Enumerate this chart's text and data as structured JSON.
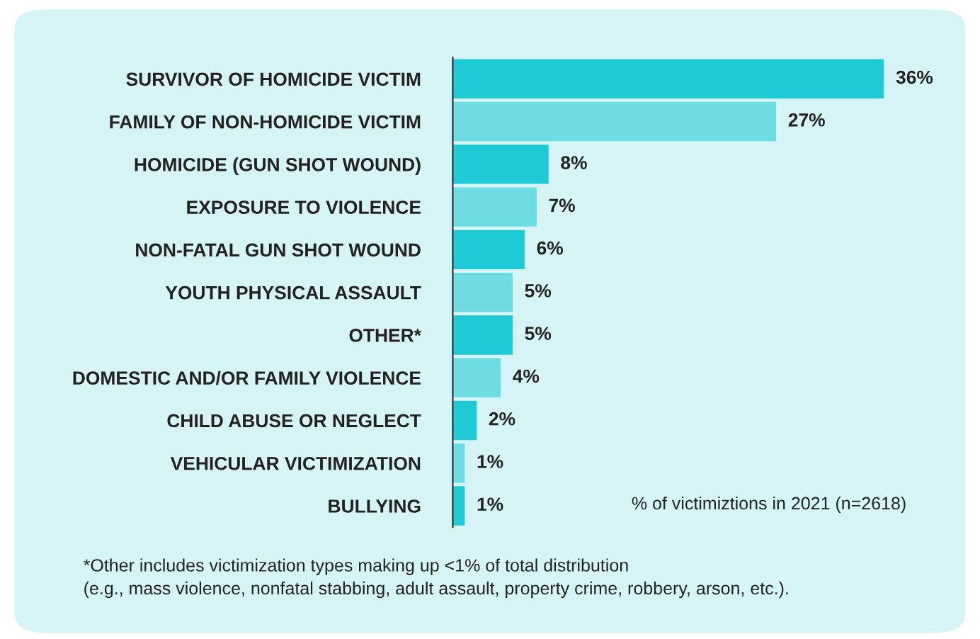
{
  "chart_data": {
    "type": "bar",
    "orientation": "horizontal",
    "categories": [
      "SURVIVOR OF HOMICIDE VICTIM",
      "FAMILY OF NON-HOMICIDE VICTIM",
      "HOMICIDE (GUN SHOT WOUND)",
      "EXPOSURE TO VIOLENCE",
      "NON-FATAL GUN SHOT WOUND",
      "YOUTH PHYSICAL ASSAULT",
      "OTHER*",
      "DOMESTIC AND/OR FAMILY VIOLENCE",
      "CHILD ABUSE OR NEGLECT",
      "VEHICULAR VICTIMIZATION",
      "BULLYING"
    ],
    "values": [
      36,
      27,
      8,
      7,
      6,
      5,
      5,
      4,
      2,
      1,
      1
    ],
    "value_labels": [
      "36%",
      "27%",
      "8%",
      "7%",
      "6%",
      "5%",
      "5%",
      "4%",
      "2%",
      "1%",
      "1%"
    ],
    "colors": [
      "#1ecad6",
      "#6ddce3",
      "#1ecad6",
      "#6ddce3",
      "#1ecad6",
      "#6ddce3",
      "#1ecad6",
      "#6ddce3",
      "#1ecad6",
      "#6ddce3",
      "#1ecad6"
    ],
    "annotations": [
      "% of victimiztions in 2021 (n=2618)",
      "*Other includes victimization types making up <1% of total distribution\n(e.g., mass violence, nonfatal stabbing, adult assault, property crime, robbery, arson, etc.)."
    ]
  }
}
